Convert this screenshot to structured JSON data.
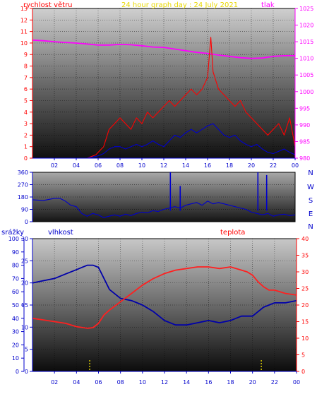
{
  "chart_data": [
    {
      "type": "line",
      "title": "24 hour graph day : 24 July 2021",
      "left_axis_label": "rychlost větru",
      "right_axis_label": "tlak",
      "x_ticks": [
        "02",
        "04",
        "06",
        "08",
        "10",
        "12",
        "14",
        "16",
        "18",
        "20",
        "22",
        "00"
      ],
      "left_ticks": [
        "0",
        "1",
        "2",
        "3",
        "4",
        "5",
        "6",
        "7",
        "8",
        "9",
        "10",
        "11",
        "12",
        "13"
      ],
      "right_ticks": [
        "980",
        "985",
        "990",
        "995",
        "1000",
        "1005",
        "1010",
        "1015",
        "1020",
        "1025"
      ],
      "ylim_left": [
        0,
        13
      ],
      "ylim_right": [
        980,
        1025
      ],
      "xlim_hours": [
        0,
        24
      ],
      "series": [
        {
          "name": "tlak",
          "axis": "right",
          "color": "#ff00ff",
          "x": [
            0,
            1,
            2,
            3,
            4,
            5,
            6,
            7,
            8,
            9,
            10,
            11,
            12,
            13,
            14,
            15,
            16,
            17,
            18,
            19,
            20,
            21,
            22,
            23,
            24
          ],
          "y": [
            1015.5,
            1015.3,
            1015,
            1014.8,
            1014.6,
            1014.3,
            1014,
            1014,
            1014.2,
            1014.1,
            1013.8,
            1013.4,
            1013.3,
            1012.8,
            1012.3,
            1011.8,
            1011.5,
            1011,
            1010.6,
            1010.2,
            1010,
            1010.1,
            1010.6,
            1010.8,
            1010.8
          ]
        },
        {
          "name": "gust",
          "axis": "left",
          "color": "#ff0000",
          "x": [
            0,
            5,
            5.8,
            6,
            6.5,
            7,
            7.5,
            8,
            8.5,
            9,
            9.5,
            10,
            10.5,
            11,
            11.5,
            12,
            12.5,
            13,
            13.5,
            14,
            14.5,
            15,
            15.5,
            16,
            16.3,
            16.5,
            17,
            17.5,
            18,
            18.5,
            19,
            19.5,
            20,
            20.5,
            21,
            21.5,
            22,
            22.5,
            23,
            23.5,
            24
          ],
          "y": [
            0,
            0,
            0.3,
            0.5,
            1,
            2.5,
            3,
            3.5,
            3,
            2.5,
            3.5,
            3,
            4,
            3.5,
            4,
            4.5,
            5,
            4.5,
            5,
            5.5,
            6,
            5.5,
            6,
            7,
            10.5,
            7.5,
            6,
            5.5,
            5,
            4.5,
            5,
            4,
            3.5,
            3,
            2.5,
            2,
            2.5,
            3,
            2,
            3.5,
            1
          ]
        },
        {
          "name": "wind",
          "axis": "left",
          "color": "#0000cc",
          "x": [
            0,
            5,
            6,
            6.5,
            7,
            7.5,
            8,
            8.5,
            9,
            9.5,
            10,
            10.5,
            11,
            11.5,
            12,
            12.5,
            13,
            13.5,
            14,
            14.5,
            15,
            15.5,
            16,
            16.5,
            17,
            17.5,
            18,
            18.5,
            19,
            19.5,
            20,
            20.5,
            21,
            21.5,
            22,
            22.5,
            23,
            23.5,
            24
          ],
          "y": [
            0,
            0,
            0.2,
            0.4,
            0.8,
            1,
            1,
            0.8,
            1,
            1.2,
            1,
            1.2,
            1.5,
            1.2,
            1,
            1.5,
            2,
            1.8,
            2.2,
            2.5,
            2.2,
            2.5,
            2.8,
            3,
            2.5,
            2,
            1.8,
            2,
            1.5,
            1.2,
            1,
            1.2,
            0.8,
            0.5,
            0.4,
            0.6,
            0.8,
            0.5,
            0.3
          ]
        }
      ]
    },
    {
      "type": "line",
      "left_ticks": [
        "0",
        "90",
        "180",
        "270",
        "360"
      ],
      "right_labels": [
        "N",
        "W",
        "S",
        "E",
        "N"
      ],
      "ylim": [
        0,
        360
      ],
      "xlim_hours": [
        0,
        24
      ],
      "series": [
        {
          "name": "direction",
          "color": "#0000cc",
          "x": [
            0,
            1,
            2,
            2.5,
            3,
            3.5,
            4,
            4.5,
            5,
            5.5,
            6,
            6.5,
            7,
            7.5,
            8,
            8.5,
            9,
            9.5,
            10,
            10.5,
            11,
            11.5,
            12,
            12.5,
            13,
            13.5,
            14,
            14.5,
            15,
            15.5,
            16,
            16.5,
            17,
            17.5,
            18,
            18.5,
            19,
            19.5,
            20,
            20.5,
            21,
            21.5,
            22,
            22.5,
            23,
            23.5,
            24
          ],
          "y": [
            160,
            155,
            170,
            170,
            150,
            120,
            110,
            60,
            40,
            60,
            50,
            30,
            40,
            50,
            40,
            55,
            45,
            60,
            70,
            65,
            80,
            75,
            90,
            100,
            110,
            100,
            120,
            130,
            140,
            120,
            150,
            130,
            140,
            130,
            120,
            110,
            100,
            90,
            70,
            60,
            50,
            60,
            40,
            50,
            55,
            45,
            50
          ],
          "spikes": [
            {
              "x": 12.6,
              "y": 360
            },
            {
              "x": 13.5,
              "y": 260
            },
            {
              "x": 20.6,
              "y": 360
            },
            {
              "x": 21.4,
              "y": 340
            }
          ]
        }
      ]
    },
    {
      "type": "line",
      "label_srazky": "srážky",
      "label_vlhkost": "vlhkost",
      "label_teplota": "teplota",
      "x_ticks": [
        "02",
        "04",
        "06",
        "08",
        "10",
        "12",
        "14",
        "16",
        "18",
        "20",
        "22",
        "00"
      ],
      "srazky_ticks": [
        "0",
        "10",
        "20",
        "30",
        "40",
        "50",
        "60",
        "70",
        "80",
        "90",
        "100"
      ],
      "vlhkost_ticks": [
        "0",
        "5",
        "10",
        "15",
        "20",
        "25",
        "30"
      ],
      "teplota_ticks": [
        "0",
        "5",
        "10",
        "15",
        "20",
        "25",
        "30",
        "35",
        "40"
      ],
      "ylim_vlhkost": [
        0,
        30
      ],
      "ylim_teplota": [
        0,
        40
      ],
      "xlim_hours": [
        0,
        24
      ],
      "series": [
        {
          "name": "vlhkost",
          "axis": "vlhkost",
          "color": "#0000aa",
          "x": [
            0,
            1,
            2,
            3,
            4,
            4.5,
            5,
            5.5,
            6,
            6.5,
            7,
            7.5,
            8,
            9,
            10,
            11,
            11.5,
            12,
            12.5,
            13,
            14,
            15,
            16,
            17,
            18,
            19,
            20,
            21,
            22,
            23,
            24
          ],
          "y": [
            20,
            20.5,
            21,
            22,
            23,
            23.5,
            24,
            24,
            23.5,
            21,
            18.5,
            17.5,
            16.5,
            16,
            15,
            13.5,
            12.5,
            11.5,
            11,
            10.5,
            10.5,
            11,
            11.5,
            11,
            11.5,
            12.5,
            12.5,
            14.5,
            15.5,
            15.5,
            16
          ]
        },
        {
          "name": "teplota",
          "axis": "teplota",
          "color": "#ff2020",
          "x": [
            0,
            1,
            2,
            3,
            4,
            5,
            5.5,
            6,
            6.5,
            7,
            8,
            9,
            10,
            11,
            12,
            13,
            14,
            15,
            16,
            17,
            18,
            19,
            19.5,
            20,
            20.5,
            21,
            21.5,
            22,
            23,
            24
          ],
          "y": [
            16,
            15.5,
            15,
            14.5,
            13.5,
            13,
            13.2,
            14.5,
            17,
            18.5,
            21,
            23.5,
            26,
            28,
            29.5,
            30.5,
            31,
            31.5,
            31.5,
            31,
            31.5,
            30.5,
            30,
            29,
            27,
            25.5,
            24.5,
            24.5,
            23.5,
            23
          ]
        }
      ],
      "rain_markers_hours": [
        5.2,
        20.8
      ]
    }
  ]
}
